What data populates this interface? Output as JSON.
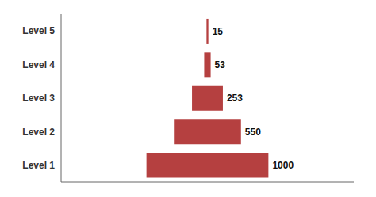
{
  "chart_data": {
    "type": "funnel",
    "orientation": "horizontal",
    "categories": [
      "Level 1",
      "Level 2",
      "Level 3",
      "Level 4",
      "Level 5"
    ],
    "values": [
      1000,
      550,
      253,
      53,
      15
    ],
    "color": "#b54040",
    "xlim": [
      -1200,
      1200
    ],
    "tick_labels": "y",
    "data_labels": true
  }
}
